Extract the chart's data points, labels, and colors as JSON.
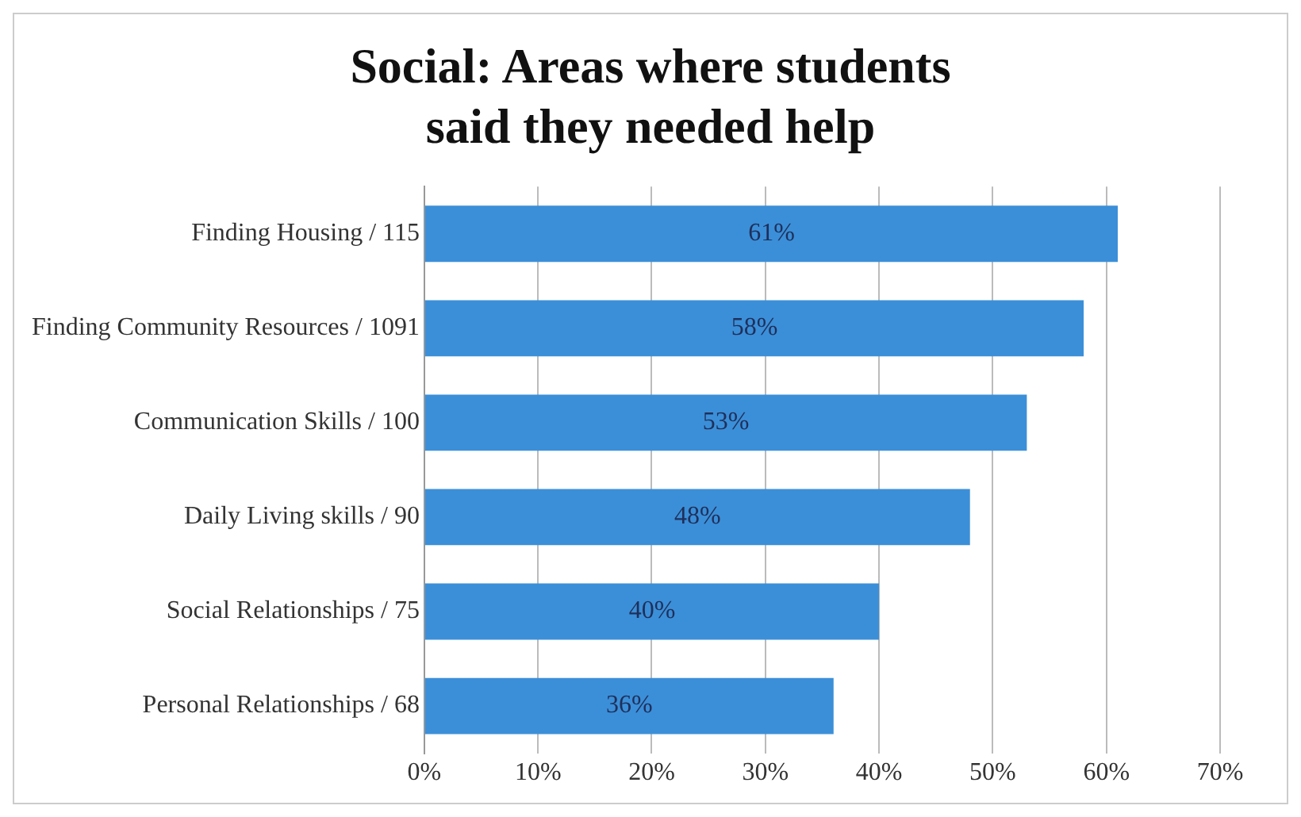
{
  "chart_data": {
    "type": "bar",
    "orientation": "horizontal",
    "title": "Social:  Areas where students said they needed help",
    "categories": [
      "Finding Housing / 115",
      "Finding Community Resources / 1091",
      "Communication Skills / 100",
      "Daily Living skills / 90",
      "Social Relationships / 75",
      "Personal Relationships / 68"
    ],
    "values": [
      61,
      58,
      53,
      48,
      40,
      36
    ],
    "value_labels": [
      "61%",
      "58%",
      "53%",
      "48%",
      "40%",
      "36%"
    ],
    "color": "#3b8fd8",
    "xlim": [
      0,
      70
    ],
    "xticks": [
      {
        "value": 0,
        "label": "0%"
      },
      {
        "value": 10,
        "label": "10%"
      },
      {
        "value": 20,
        "label": "20%"
      },
      {
        "value": 30,
        "label": "30%"
      },
      {
        "value": 40,
        "label": "40%"
      },
      {
        "value": 50,
        "label": "50%"
      },
      {
        "value": 60,
        "label": "60%"
      },
      {
        "value": 70,
        "label": "70%"
      }
    ],
    "grid": "x"
  }
}
